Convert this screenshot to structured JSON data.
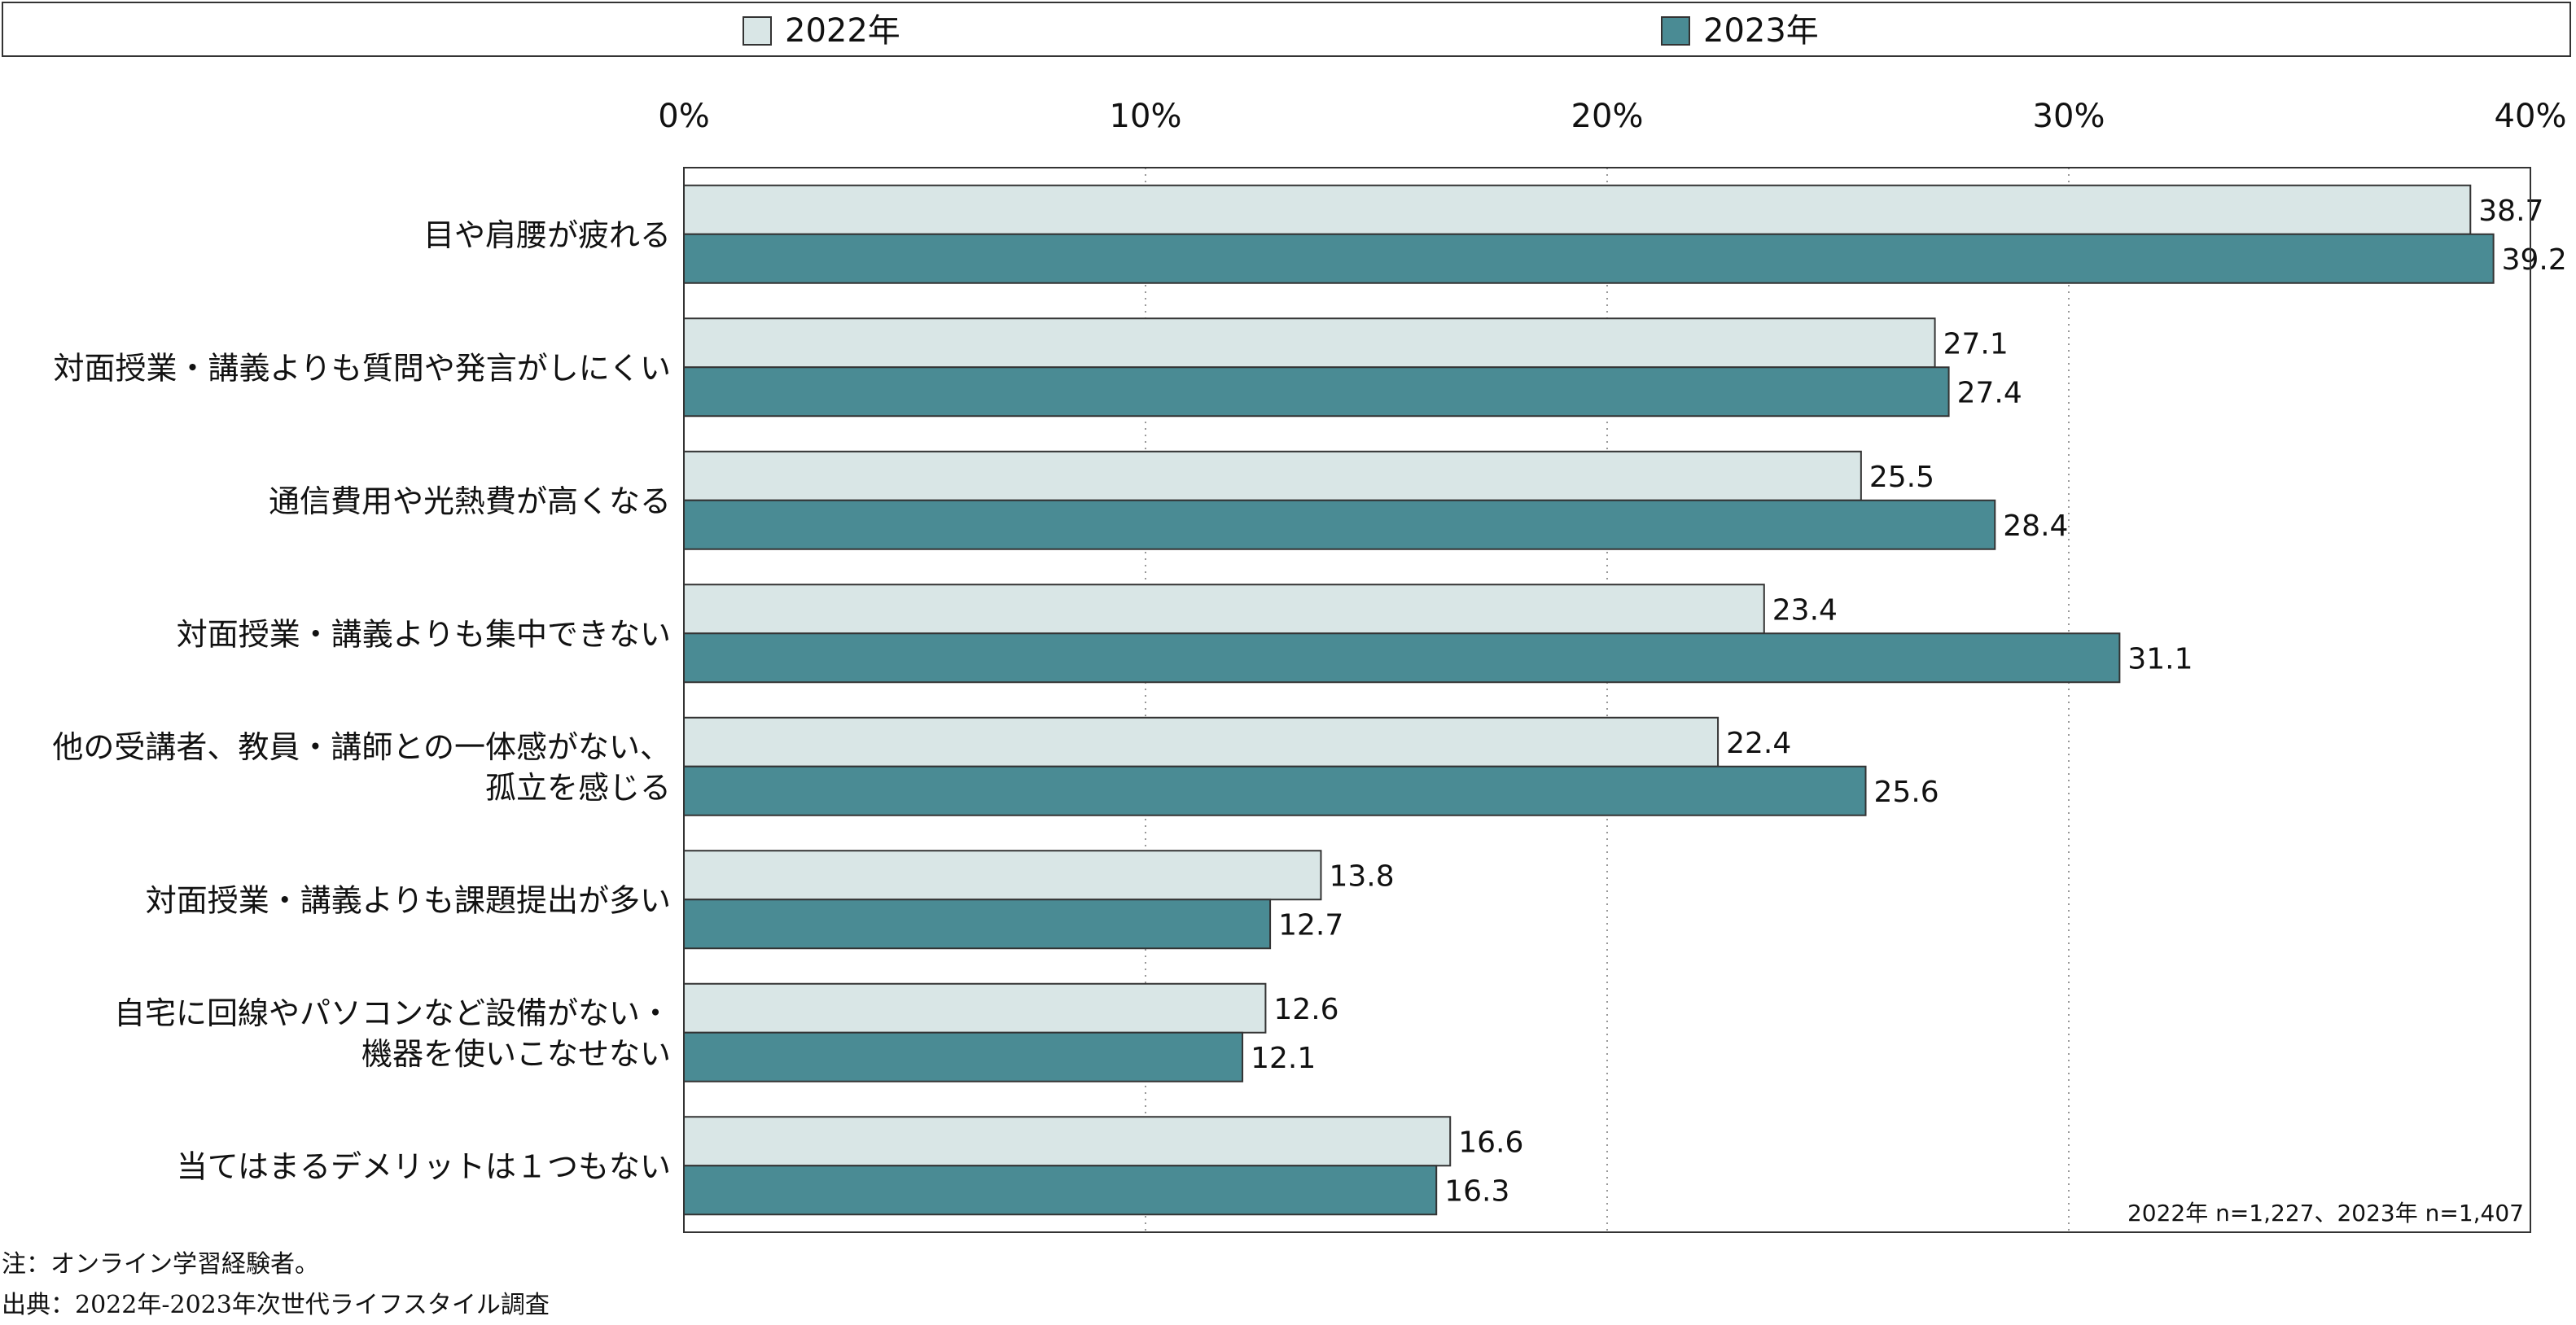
{
  "legend": {
    "items": [
      {
        "label": "2022年",
        "color": "#d9e6e6"
      },
      {
        "label": "2023年",
        "color": "#4a8b94"
      }
    ]
  },
  "sample_note": "2022年 n=1,227、2023年 n=1,407",
  "notes": {
    "note": "注：オンライン学習経験者。",
    "source": "出典：2022年-2023年次世代ライフスタイル調査"
  },
  "chart_data": {
    "type": "bar",
    "orientation": "horizontal",
    "title": "",
    "xlabel": "",
    "ylabel": "",
    "xlim": [
      0,
      40
    ],
    "x_ticks": [
      "0%",
      "10%",
      "20%",
      "30%",
      "40%"
    ],
    "grid": "vertical dotted",
    "legend_position": "top",
    "categories": [
      [
        "目や肩腰が疲れる"
      ],
      [
        "対面授業・講義よりも質問や発言がしにくい"
      ],
      [
        "通信費用や光熱費が高くなる"
      ],
      [
        "対面授業・講義よりも集中できない"
      ],
      [
        "他の受講者、教員・講師との一体感がない、",
        "孤立を感じる"
      ],
      [
        "対面授業・講義よりも課題提出が多い"
      ],
      [
        "自宅に回線やパソコンなど設備がない・",
        "機器を使いこなせない"
      ],
      [
        "当てはまるデメリットは１つもない"
      ]
    ],
    "series": [
      {
        "name": "2022年",
        "color": "#d9e6e6",
        "values": [
          38.7,
          27.1,
          25.5,
          23.4,
          22.4,
          13.8,
          12.6,
          16.6
        ],
        "labels": [
          "38.7",
          "27.1",
          "25.5",
          "23.4",
          "22.4",
          "13.8",
          "12.6",
          "16.6"
        ]
      },
      {
        "name": "2023年",
        "color": "#4a8b94",
        "values": [
          39.2,
          27.4,
          28.4,
          31.1,
          25.6,
          12.7,
          12.1,
          16.3
        ],
        "labels": [
          "39.2",
          "27.4",
          "28.4",
          "31.1",
          "25.6",
          "12.7",
          "12.1",
          "16.3"
        ]
      }
    ]
  }
}
